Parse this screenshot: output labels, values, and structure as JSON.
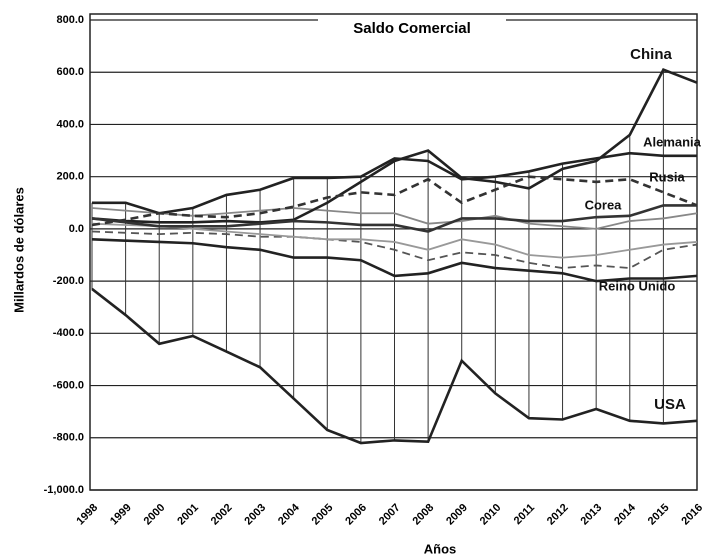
{
  "chart_data": {
    "type": "line",
    "title": "Saldo Comercial",
    "y_label": "Millardos de dólares",
    "x_label": "Años",
    "categories": [
      "1998",
      "1999",
      "2000",
      "2001",
      "2002",
      "2003",
      "2004",
      "2005",
      "2006",
      "2007",
      "2008",
      "2009",
      "2010",
      "2011",
      "2012",
      "2013",
      "2014",
      "2015",
      "2016"
    ],
    "ylim": [
      -1000,
      800
    ],
    "yticks": [
      {
        "value": -1000,
        "label": "-1,000.0"
      },
      {
        "value": -800,
        "label": "-800.0"
      },
      {
        "value": -600,
        "label": "-600.0"
      },
      {
        "value": -400,
        "label": "-400.0"
      },
      {
        "value": -200,
        "label": "-200.0"
      },
      {
        "value": 0,
        "label": "0.0"
      },
      {
        "value": 200,
        "label": "200.0"
      },
      {
        "value": 400,
        "label": "400.0"
      },
      {
        "value": 600,
        "label": "600.0"
      },
      {
        "value": 800,
        "label": "800.0"
      }
    ],
    "grid": true,
    "series": [
      {
        "name": "China",
        "color": "#222222",
        "dashed": false,
        "values": [
          40,
          30,
          25,
          25,
          30,
          25,
          35,
          100,
          180,
          260,
          300,
          195,
          180,
          155,
          230,
          260,
          360,
          610,
          560
        ]
      },
      {
        "name": "Alemania",
        "color": "#222222",
        "dashed": false,
        "values": [
          100,
          100,
          60,
          80,
          130,
          150,
          195,
          195,
          200,
          270,
          260,
          190,
          200,
          220,
          250,
          270,
          290,
          280,
          280
        ]
      },
      {
        "name": "Rusia",
        "color": "#333333",
        "dashed": true,
        "values": [
          15,
          35,
          60,
          50,
          45,
          60,
          85,
          120,
          140,
          130,
          190,
          100,
          150,
          200,
          190,
          180,
          190,
          140,
          90
        ]
      },
      {
        "name": "Corea",
        "color": "#333333",
        "dashed": false,
        "values": [
          40,
          25,
          10,
          10,
          10,
          20,
          30,
          25,
          15,
          15,
          -10,
          40,
          40,
          30,
          30,
          45,
          50,
          90,
          90
        ]
      },
      {
        "name": "Reino Unido",
        "color": "#222222",
        "dashed": false,
        "values": [
          -40,
          -45,
          -50,
          -55,
          -70,
          -80,
          -110,
          -110,
          -120,
          -180,
          -170,
          -130,
          -150,
          -160,
          -170,
          -200,
          -190,
          -190,
          -180
        ]
      },
      {
        "name": "USA",
        "color": "#222222",
        "dashed": false,
        "values": [
          -230,
          -330,
          -440,
          -410,
          -470,
          -530,
          -650,
          -770,
          -820,
          -810,
          -815,
          -505,
          -630,
          -725,
          -730,
          -690,
          -735,
          -745,
          -735
        ]
      },
      {
        "color": "#888888",
        "dashed": false,
        "values": [
          80,
          70,
          60,
          50,
          60,
          70,
          80,
          70,
          60,
          60,
          20,
          30,
          50,
          20,
          10,
          0,
          30,
          40,
          60
        ]
      },
      {
        "color": "#555555",
        "dashed": true,
        "values": [
          -10,
          -15,
          -20,
          -15,
          -20,
          -30,
          -30,
          -40,
          -50,
          -80,
          -120,
          -90,
          -100,
          -130,
          -150,
          -140,
          -150,
          -80,
          -60
        ]
      },
      {
        "color": "#999999",
        "dashed": false,
        "values": [
          20,
          15,
          10,
          0,
          -10,
          -20,
          -30,
          -40,
          -40,
          -50,
          -80,
          -40,
          -60,
          -100,
          -110,
          -100,
          -80,
          -60,
          -50
        ]
      }
    ]
  }
}
